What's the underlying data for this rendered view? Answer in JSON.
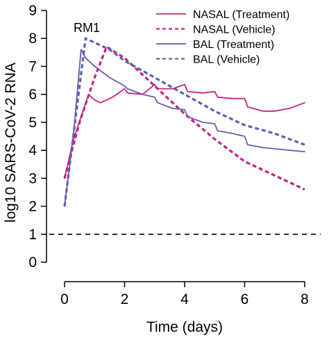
{
  "chart_data": {
    "type": "line",
    "title": "",
    "xlabel": "Time (days)",
    "ylabel": "log10 SARS-CoV-2 RNA",
    "xlim": [
      0,
      8
    ],
    "ylim": [
      0,
      9
    ],
    "x_ticks": [
      "0",
      "2",
      "4",
      "6",
      "8"
    ],
    "y_ticks": [
      "0",
      "1",
      "2",
      "3",
      "4",
      "5",
      "6",
      "7",
      "8",
      "9"
    ],
    "annotation": "RM1",
    "reference_line": {
      "y": 1,
      "style": "dashed",
      "color": "#000000"
    },
    "legend_position": "top-right",
    "grid": false,
    "series": [
      {
        "name": "NASAL (Treatment)",
        "color": "#c2267d",
        "dash": "solid",
        "points": [
          [
            0,
            3.0
          ],
          [
            0.3,
            4.4
          ],
          [
            0.8,
            6.0
          ],
          [
            1.0,
            5.8
          ],
          [
            1.2,
            5.7
          ],
          [
            1.6,
            5.9
          ],
          [
            2.0,
            6.2
          ],
          [
            2.1,
            6.05
          ],
          [
            2.6,
            6.0
          ],
          [
            3.0,
            6.35
          ],
          [
            3.1,
            6.2
          ],
          [
            3.6,
            6.2
          ],
          [
            4.0,
            6.35
          ],
          [
            4.1,
            6.1
          ],
          [
            4.6,
            6.05
          ],
          [
            5.0,
            6.1
          ],
          [
            5.1,
            5.9
          ],
          [
            5.6,
            5.85
          ],
          [
            6.0,
            5.85
          ],
          [
            6.1,
            5.55
          ],
          [
            6.6,
            5.4
          ],
          [
            7.0,
            5.4
          ],
          [
            7.5,
            5.5
          ],
          [
            8.0,
            5.7
          ]
        ]
      },
      {
        "name": "NASAL (Vehicle)",
        "color": "#c2267d",
        "dash": "dashed",
        "points": [
          [
            0,
            3.0
          ],
          [
            0.5,
            5.0
          ],
          [
            1.0,
            6.6
          ],
          [
            1.4,
            7.7
          ],
          [
            2.0,
            7.3
          ],
          [
            3.0,
            6.3
          ],
          [
            4.0,
            5.3
          ],
          [
            5.0,
            4.4
          ],
          [
            6.0,
            3.6
          ],
          [
            7.0,
            3.1
          ],
          [
            8.0,
            2.6
          ]
        ]
      },
      {
        "name": "BAL (Treatment)",
        "color": "#6a5aac",
        "dash": "solid",
        "points": [
          [
            0,
            2.0
          ],
          [
            0.3,
            4.6
          ],
          [
            0.55,
            7.6
          ],
          [
            0.7,
            7.3
          ],
          [
            1.0,
            7.0
          ],
          [
            1.5,
            6.6
          ],
          [
            2.0,
            6.3
          ],
          [
            2.1,
            6.2
          ],
          [
            2.6,
            6.0
          ],
          [
            3.0,
            5.9
          ],
          [
            3.1,
            5.7
          ],
          [
            3.6,
            5.5
          ],
          [
            4.0,
            5.45
          ],
          [
            4.1,
            5.2
          ],
          [
            4.6,
            5.0
          ],
          [
            5.0,
            4.95
          ],
          [
            5.1,
            4.7
          ],
          [
            5.6,
            4.6
          ],
          [
            6.0,
            4.5
          ],
          [
            6.1,
            4.2
          ],
          [
            6.6,
            4.1
          ],
          [
            7.5,
            4.0
          ],
          [
            8.0,
            3.95
          ]
        ]
      },
      {
        "name": "BAL (Vehicle)",
        "color": "#5b63b4",
        "dash": "dashed",
        "points": [
          [
            0,
            2.0
          ],
          [
            0.35,
            5.0
          ],
          [
            0.7,
            8.0
          ],
          [
            1.5,
            7.6
          ],
          [
            2.0,
            7.2
          ],
          [
            3.0,
            6.6
          ],
          [
            4.0,
            6.0
          ],
          [
            5.0,
            5.4
          ],
          [
            6.0,
            4.9
          ],
          [
            7.0,
            4.6
          ],
          [
            8.0,
            4.2
          ]
        ]
      }
    ]
  }
}
